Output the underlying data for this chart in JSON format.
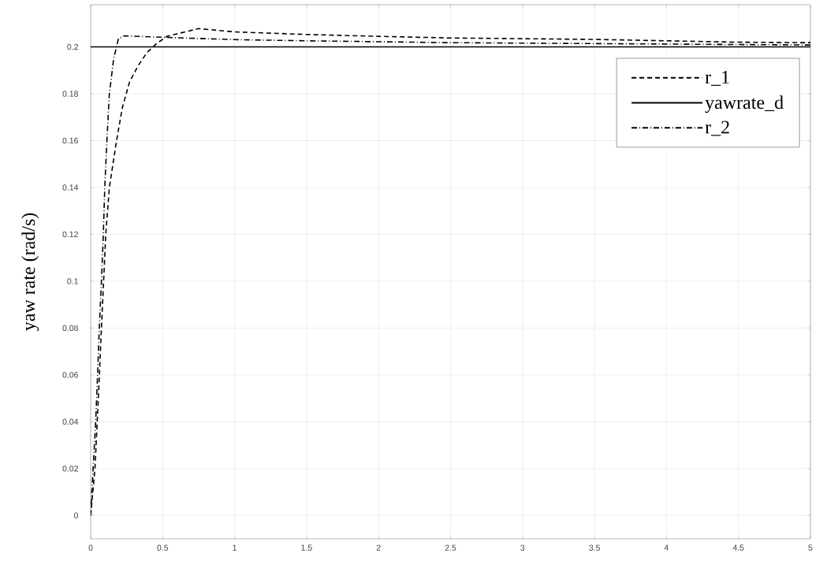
{
  "chart_data": {
    "type": "line",
    "ylabel": "yaw rate (rad/s)",
    "xlim": [
      0,
      5
    ],
    "ylim": [
      -0.01,
      0.218
    ],
    "xticks": [
      0,
      0.5,
      1,
      1.5,
      2,
      2.5,
      3,
      3.5,
      4,
      4.5,
      5
    ],
    "yticks": [
      0,
      0.02,
      0.04,
      0.06,
      0.08,
      0.1,
      0.12,
      0.14,
      0.16,
      0.18,
      0.2
    ],
    "grid": true,
    "legend": "top right",
    "series": [
      {
        "name": "r_1",
        "color": "#000000",
        "line_style": "dashed",
        "x": [
          0,
          0.03,
          0.055,
          0.075,
          0.105,
          0.13,
          0.18,
          0.22,
          0.27,
          0.33,
          0.39,
          0.46,
          0.53,
          0.75,
          1,
          1.5,
          2,
          2.5,
          3,
          3.5,
          4,
          4.5,
          5
        ],
        "values": [
          0,
          0.02,
          0.052,
          0.08,
          0.12,
          0.14,
          0.16,
          0.174,
          0.185,
          0.192,
          0.1975,
          0.2015,
          0.2045,
          0.2078,
          0.2064,
          0.2053,
          0.2045,
          0.2038,
          0.2035,
          0.2032,
          0.2026,
          0.202,
          0.2018
        ]
      },
      {
        "name": "yawrate_d",
        "color": "#000000",
        "line_style": "solid",
        "x": [
          0,
          5
        ],
        "values": [
          0.2,
          0.2
        ]
      },
      {
        "name": "r_2",
        "color": "#000000",
        "line_style": "dashdot",
        "x": [
          0,
          0.018,
          0.035,
          0.048,
          0.06,
          0.075,
          0.088,
          0.098,
          0.113,
          0.13,
          0.16,
          0.193,
          0.23,
          0.5,
          1,
          1.5,
          2.5,
          3.5,
          5
        ],
        "values": [
          0,
          0.021,
          0.04,
          0.06,
          0.08,
          0.1,
          0.12,
          0.14,
          0.16,
          0.18,
          0.195,
          0.2035,
          0.2047,
          0.2041,
          0.2031,
          0.2026,
          0.2018,
          0.2014,
          0.2008
        ]
      }
    ]
  }
}
